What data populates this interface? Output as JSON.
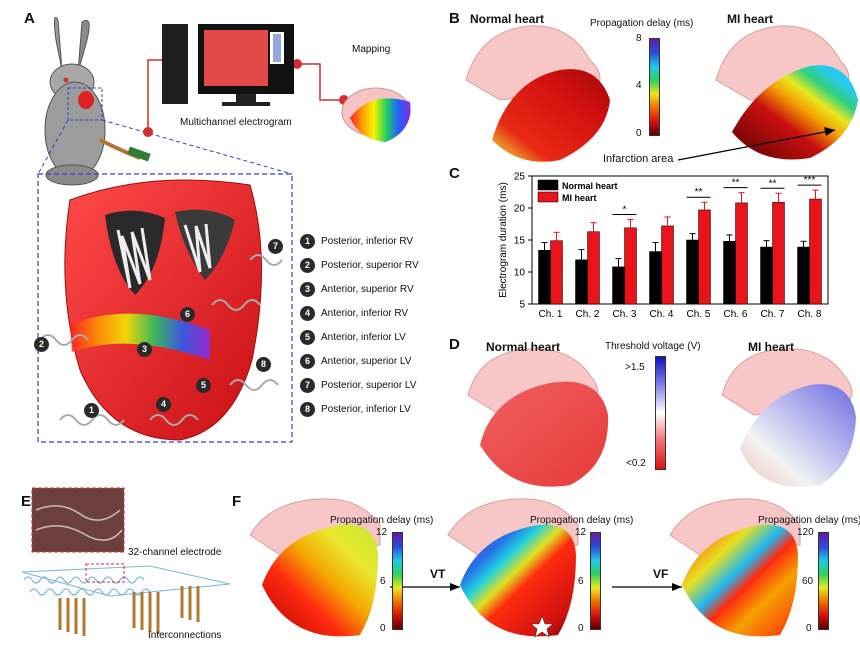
{
  "panels": {
    "a": "A",
    "b": "B",
    "c": "C",
    "d": "D",
    "e": "E",
    "f": "F"
  },
  "panel_a": {
    "monitor_label": "Multichannel electrogram",
    "mapping_label": "Mapping",
    "electrodes": [
      {
        "num": "1",
        "label": "Posterior, inferior RV"
      },
      {
        "num": "2",
        "label": "Posterior, superior RV"
      },
      {
        "num": "3",
        "label": "Anterior, superior RV"
      },
      {
        "num": "4",
        "label": "Anterior, inferior RV"
      },
      {
        "num": "5",
        "label": "Anterior, inferior LV"
      },
      {
        "num": "6",
        "label": "Anterior, superior LV"
      },
      {
        "num": "7",
        "label": "Posterior, superior LV"
      },
      {
        "num": "8",
        "label": "Posterior, inferior LV"
      }
    ]
  },
  "panel_b": {
    "normal_title": "Normal heart",
    "mi_title": "MI heart",
    "scale_title": "Propagation delay (ms)",
    "scale_ticks": [
      "8",
      "4",
      "0"
    ],
    "infarction_label": "Infarction area"
  },
  "panel_d": {
    "normal_title": "Normal heart",
    "mi_title": "MI heart",
    "scale_title": "Threshold voltage (V)",
    "scale_ticks": [
      ">1.5",
      "<0.2"
    ]
  },
  "panel_e": {
    "electrode_label": "32-channel electrode",
    "interconnect_label": "Interconnections"
  },
  "panel_f": {
    "maps": [
      {
        "title": "Propagation delay (ms)",
        "ticks": [
          "12",
          "6",
          "0"
        ]
      },
      {
        "title": "Propagation delay (ms)",
        "ticks": [
          "12",
          "6",
          "0"
        ]
      },
      {
        "title": "Propagation delay (ms)",
        "ticks": [
          "120",
          "60",
          "0"
        ]
      }
    ],
    "arrow_labels": [
      "VT",
      "VF"
    ]
  },
  "chart_data": {
    "type": "bar",
    "ylabel": "Electrogram duration (ms)",
    "ylim": [
      5,
      25
    ],
    "yticks": [
      5,
      10,
      15,
      20,
      25
    ],
    "categories": [
      "Ch. 1",
      "Ch. 2",
      "Ch. 3",
      "Ch. 4",
      "Ch. 5",
      "Ch. 6",
      "Ch. 7",
      "Ch. 8"
    ],
    "series": [
      {
        "name": "Normal heart",
        "color": "#000000",
        "values": [
          13.4,
          11.9,
          10.8,
          13.2,
          15.0,
          14.8,
          13.9,
          13.9
        ],
        "errors": [
          1.2,
          1.6,
          1.3,
          1.4,
          1.0,
          1.0,
          1.0,
          0.9
        ]
      },
      {
        "name": "MI heart",
        "color": "#e8141a",
        "values": [
          14.9,
          16.3,
          16.9,
          17.2,
          19.7,
          20.8,
          20.9,
          21.4
        ],
        "errors": [
          1.3,
          1.4,
          1.3,
          1.4,
          1.2,
          1.6,
          1.4,
          1.4
        ]
      }
    ],
    "significance": [
      "",
      "",
      "*",
      "",
      "**",
      "**",
      "**",
      "***"
    ],
    "legend_position": "top-left"
  }
}
